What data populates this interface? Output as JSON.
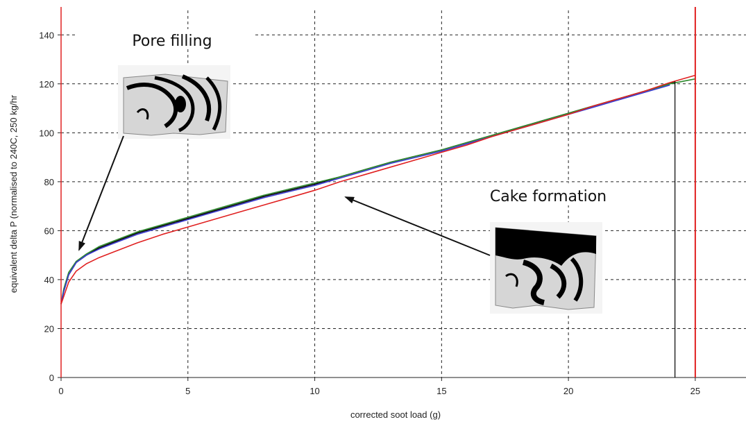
{
  "chart_data": {
    "type": "line",
    "title": "",
    "xlabel": "corrected soot load (g)",
    "ylabel": "equivalent delta P (normalised to 240C, 250 kg/hr",
    "xlim": [
      0,
      27
    ],
    "ylim": [
      0,
      150
    ],
    "x_ticks": [
      0,
      5,
      10,
      15,
      20,
      25
    ],
    "y_ticks": [
      0,
      20,
      40,
      60,
      80,
      100,
      120,
      140
    ],
    "grid": true,
    "legend": "none",
    "series": [
      {
        "color": "#000000",
        "x": [
          0,
          0.1,
          0.3,
          0.6,
          1.0,
          1.5,
          2,
          3,
          4,
          5,
          6,
          7,
          8,
          9,
          10,
          11,
          12,
          13,
          14,
          15,
          16,
          17,
          18,
          19,
          20,
          21,
          22,
          23,
          24,
          24.2
        ],
        "y": [
          30,
          35,
          42,
          47,
          50,
          53,
          55,
          59,
          62,
          65,
          68,
          71,
          74,
          76.5,
          79,
          82,
          85,
          88,
          90.5,
          93,
          96,
          99,
          102,
          105,
          108,
          111,
          114,
          117,
          120,
          121
        ]
      },
      {
        "color": "#2e8b2e",
        "x": [
          0,
          0.1,
          0.3,
          0.6,
          1.0,
          1.5,
          2,
          3,
          4,
          5,
          6,
          7,
          8,
          9,
          10,
          11,
          12,
          13,
          14,
          15,
          16,
          17,
          18,
          19,
          20,
          21,
          22,
          23,
          24,
          25
        ],
        "y": [
          30,
          36,
          43,
          47.5,
          50.5,
          53.5,
          55.5,
          59.5,
          62.5,
          65.5,
          68.5,
          71.5,
          74.5,
          77,
          79.5,
          82,
          85,
          88,
          90.5,
          93,
          96,
          99,
          102,
          105,
          108,
          111,
          114,
          117,
          120,
          122
        ]
      },
      {
        "color": "#3a3ad0",
        "x": [
          0,
          0.1,
          0.3,
          0.6,
          1.0,
          1.5,
          2,
          3,
          4,
          5,
          6,
          7,
          8,
          9,
          10,
          11,
          12,
          13,
          14,
          15,
          16,
          17,
          18,
          19,
          20,
          21,
          22,
          23,
          24
        ],
        "y": [
          30,
          35,
          42,
          47,
          50,
          52.5,
          54.5,
          58.5,
          61.5,
          64.5,
          67.5,
          70.5,
          73.5,
          76,
          78.5,
          81.5,
          84.5,
          87.5,
          90,
          92.5,
          95.5,
          98.5,
          101.5,
          104.5,
          107.5,
          110.5,
          113.5,
          116.5,
          119.5
        ]
      },
      {
        "color": "#e02020",
        "x": [
          0,
          0.1,
          0.3,
          0.6,
          1.0,
          1.5,
          2,
          3,
          4,
          5,
          6,
          7,
          8,
          9,
          10,
          11,
          12,
          13,
          14,
          15,
          16,
          17,
          18,
          19,
          20,
          21,
          22,
          23,
          24,
          25
        ],
        "y": [
          30,
          33,
          39,
          43.5,
          46.5,
          49,
          51,
          55,
          58.5,
          61.5,
          64.5,
          67.5,
          70.5,
          73.5,
          76.5,
          80,
          83,
          86,
          89,
          92,
          95,
          98.5,
          101.5,
          104.5,
          107.5,
          111,
          114,
          117,
          120.5,
          123.5
        ]
      }
    ],
    "annotations": [
      {
        "text": "Pore filling",
        "arrow_to": [
          0.7,
          52
        ]
      },
      {
        "text": "Cake formation",
        "arrow_to": [
          11,
          74
        ]
      }
    ]
  }
}
